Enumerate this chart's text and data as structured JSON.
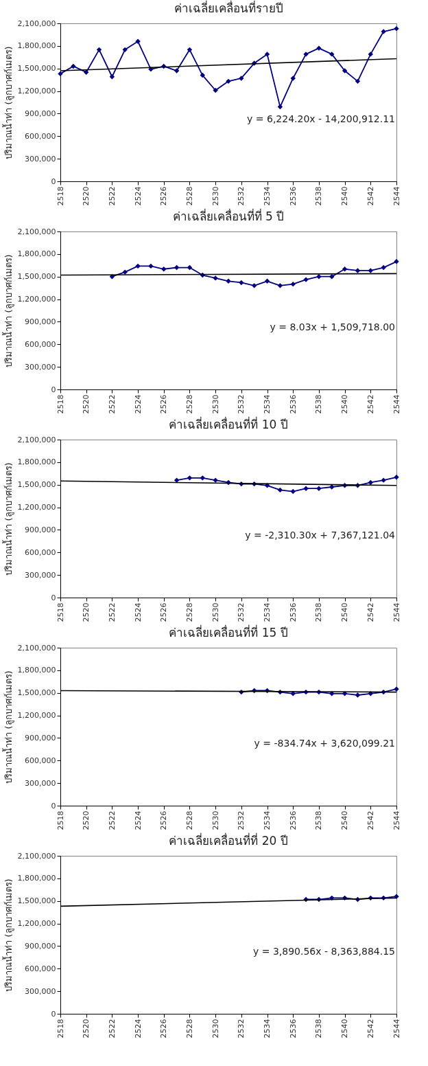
{
  "chart_data": [
    {
      "type": "line",
      "title": "ค่าเฉลี่ยเคลื่อนที่รายปี",
      "ylabel": "ปริมาณน้ำท่า (ลูกบาศก์เมตร)",
      "x": [
        2518,
        2519,
        2520,
        2521,
        2522,
        2523,
        2524,
        2525,
        2526,
        2527,
        2528,
        2529,
        2530,
        2531,
        2532,
        2533,
        2534,
        2535,
        2536,
        2537,
        2538,
        2539,
        2540,
        2541,
        2542,
        2543,
        2544
      ],
      "xlim": [
        2518,
        2544
      ],
      "xticks": [
        2518,
        2520,
        2522,
        2524,
        2526,
        2528,
        2530,
        2532,
        2534,
        2536,
        2538,
        2540,
        2542,
        2544
      ],
      "ylim": [
        0,
        2100000
      ],
      "yticks": [
        {
          "value": 0,
          "label": "0"
        },
        {
          "value": 300000,
          "label": "300,000"
        },
        {
          "value": 600000,
          "label": "600,000"
        },
        {
          "value": 900000,
          "label": "900,000"
        },
        {
          "value": 1200000,
          "label": "1,200,000"
        },
        {
          "value": 1500000,
          "label": "1,500,000"
        },
        {
          "value": 1800000,
          "label": "1,800,000"
        },
        {
          "value": 2100000,
          "label": "2,100,000"
        }
      ],
      "grid": false,
      "marker": "diamond",
      "annotations": [
        "y = 6,224.20x - 14,200,912.11"
      ],
      "series": [
        {
          "color": "#000080",
          "values": [
            1430000,
            1530000,
            1450000,
            1750000,
            1390000,
            1750000,
            1860000,
            1490000,
            1530000,
            1470000,
            1750000,
            1410000,
            1210000,
            1330000,
            1370000,
            1570000,
            1690000,
            990000,
            1370000,
            1690000,
            1770000,
            1690000,
            1470000,
            1330000,
            1690000,
            1990000,
            2030000
          ]
        },
        {
          "type": "line",
          "marker": "none",
          "color": "#000000",
          "x": [
            2518,
            2544
          ],
          "values": [
            1470000,
            1630000
          ]
        }
      ]
    },
    {
      "type": "line",
      "title": "ค่าเฉลี่ยเคลื่อนที่ที่  5 ปี",
      "ylabel": "ปริมาณน้ำท่า (ลูกบาศก์เมตร)",
      "xlim": [
        2518,
        2544
      ],
      "xticks": [
        2518,
        2520,
        2522,
        2524,
        2526,
        2528,
        2530,
        2532,
        2534,
        2536,
        2538,
        2540,
        2542,
        2544
      ],
      "ylim": [
        0,
        2100000
      ],
      "yticks": [
        {
          "value": 0,
          "label": "0"
        },
        {
          "value": 300000,
          "label": "300,000"
        },
        {
          "value": 600000,
          "label": "600,000"
        },
        {
          "value": 900000,
          "label": "900,000"
        },
        {
          "value": 1200000,
          "label": "1,200,000"
        },
        {
          "value": 1500000,
          "label": "1,500,000"
        },
        {
          "value": 1800000,
          "label": "1,800,000"
        },
        {
          "value": 2100000,
          "label": "2,100,000"
        }
      ],
      "grid": false,
      "marker": "diamond",
      "annotations": [
        "y = 8.03x + 1,509,718.00"
      ],
      "series": [
        {
          "color": "#000080",
          "x": [
            2522,
            2523,
            2524,
            2525,
            2526,
            2527,
            2528,
            2529,
            2530,
            2531,
            2532,
            2533,
            2534,
            2535,
            2536,
            2537,
            2538,
            2539,
            2540,
            2541,
            2542,
            2543,
            2544
          ],
          "values": [
            1500000,
            1560000,
            1640000,
            1640000,
            1600000,
            1620000,
            1620000,
            1520000,
            1480000,
            1440000,
            1420000,
            1380000,
            1440000,
            1380000,
            1400000,
            1460000,
            1500000,
            1500000,
            1600000,
            1580000,
            1580000,
            1620000,
            1700000
          ]
        },
        {
          "type": "line",
          "marker": "none",
          "color": "#000000",
          "x": [
            2518,
            2544
          ],
          "values": [
            1520000,
            1540000
          ]
        }
      ]
    },
    {
      "type": "line",
      "title": "ค่าเฉลี่ยเคลื่อนที่ที่ 10 ปี",
      "ylabel": "ปริมาณน้ำท่า (ลูกบาศก์เมตร)",
      "xlim": [
        2518,
        2544
      ],
      "xticks": [
        2518,
        2520,
        2522,
        2524,
        2526,
        2528,
        2530,
        2532,
        2534,
        2536,
        2538,
        2540,
        2542,
        2544
      ],
      "ylim": [
        0,
        2100000
      ],
      "yticks": [
        {
          "value": 0,
          "label": "0"
        },
        {
          "value": 300000,
          "label": "300,000"
        },
        {
          "value": 600000,
          "label": "600,000"
        },
        {
          "value": 900000,
          "label": "900,000"
        },
        {
          "value": 1200000,
          "label": "1,200,000"
        },
        {
          "value": 1500000,
          "label": "1,500,000"
        },
        {
          "value": 1800000,
          "label": "1,800,000"
        },
        {
          "value": 2100000,
          "label": "2,100,000"
        }
      ],
      "grid": false,
      "marker": "diamond",
      "annotations": [
        "y = -2,310.30x + 7,367,121.04"
      ],
      "series": [
        {
          "color": "#000080",
          "x": [
            2527,
            2528,
            2529,
            2530,
            2531,
            2532,
            2533,
            2534,
            2535,
            2536,
            2537,
            2538,
            2539,
            2540,
            2541,
            2542,
            2543,
            2544
          ],
          "values": [
            1560000,
            1590000,
            1590000,
            1560000,
            1530000,
            1510000,
            1510000,
            1490000,
            1430000,
            1410000,
            1450000,
            1450000,
            1470000,
            1490000,
            1490000,
            1530000,
            1560000,
            1600000
          ]
        },
        {
          "type": "line",
          "marker": "none",
          "color": "#000000",
          "x": [
            2518,
            2544
          ],
          "values": [
            1550000,
            1490000
          ]
        }
      ]
    },
    {
      "type": "line",
      "title": "ค่าเฉลี่ยเคลื่อนที่ที่ 15 ปี",
      "ylabel": "ปริมาณน้ำท่า (ลูกบาศก์เมตร)",
      "xlim": [
        2518,
        2544
      ],
      "xticks": [
        2518,
        2520,
        2522,
        2524,
        2526,
        2528,
        2530,
        2532,
        2534,
        2536,
        2538,
        2540,
        2542,
        2544
      ],
      "ylim": [
        0,
        2100000
      ],
      "yticks": [
        {
          "value": 0,
          "label": "0"
        },
        {
          "value": 300000,
          "label": "300,000"
        },
        {
          "value": 600000,
          "label": "600,000"
        },
        {
          "value": 900000,
          "label": "900,000"
        },
        {
          "value": 1200000,
          "label": "1,200,000"
        },
        {
          "value": 1500000,
          "label": "1,500,000"
        },
        {
          "value": 1800000,
          "label": "1,800,000"
        },
        {
          "value": 2100000,
          "label": "2,100,000"
        }
      ],
      "grid": false,
      "marker": "diamond",
      "annotations": [
        "y = -834.74x + 3,620,099.21"
      ],
      "series": [
        {
          "color": "#000080",
          "x": [
            2532,
            2533,
            2534,
            2535,
            2536,
            2537,
            2538,
            2539,
            2540,
            2541,
            2542,
            2543,
            2544
          ],
          "values": [
            1510000,
            1530000,
            1530000,
            1510000,
            1490000,
            1510000,
            1510000,
            1490000,
            1490000,
            1470000,
            1490000,
            1510000,
            1550000
          ]
        },
        {
          "type": "line",
          "marker": "none",
          "color": "#000000",
          "x": [
            2518,
            2544
          ],
          "values": [
            1530000,
            1510000
          ]
        }
      ]
    },
    {
      "type": "line",
      "title": "ค่าเฉลี่ยเคลื่อนที่ที่  20 ปี",
      "ylabel": "ปริมาณน้ำท่า (ลูกบาศก์เมตร)",
      "xlim": [
        2518,
        2544
      ],
      "xticks": [
        2518,
        2520,
        2522,
        2524,
        2526,
        2528,
        2530,
        2532,
        2534,
        2536,
        2538,
        2540,
        2542,
        2544
      ],
      "ylim": [
        0,
        2100000
      ],
      "yticks": [
        {
          "value": 0,
          "label": "0"
        },
        {
          "value": 300000,
          "label": "300,000"
        },
        {
          "value": 600000,
          "label": "600,000"
        },
        {
          "value": 900000,
          "label": "900,000"
        },
        {
          "value": 1200000,
          "label": "1,200,000"
        },
        {
          "value": 1500000,
          "label": "1,500,000"
        },
        {
          "value": 1800000,
          "label": "1,800,000"
        },
        {
          "value": 2100000,
          "label": "2,100,000"
        }
      ],
      "grid": false,
      "marker": "diamond",
      "annotations": [
        "y = 3,890.56x - 8,363,884.15"
      ],
      "series": [
        {
          "color": "#000080",
          "x": [
            2537,
            2538,
            2539,
            2540,
            2541,
            2542,
            2543,
            2544
          ],
          "values": [
            1520000,
            1520000,
            1540000,
            1540000,
            1520000,
            1540000,
            1540000,
            1560000
          ]
        },
        {
          "type": "line",
          "marker": "none",
          "color": "#000000",
          "x": [
            2518,
            2544
          ],
          "values": [
            1430000,
            1540000
          ]
        }
      ]
    }
  ]
}
